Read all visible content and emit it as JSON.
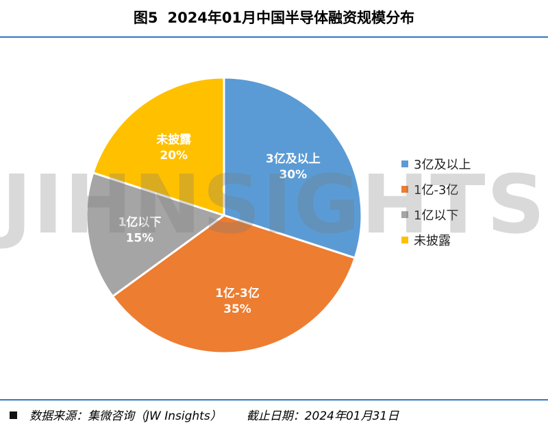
{
  "title": {
    "figure": "图5",
    "text": "2024年01月中国半导体融资规模分布"
  },
  "watermark": "JIHNSIGHTS",
  "footer": {
    "source": "数据来源：集微咨询（JW Insights）",
    "date": "截止日期：2024年01月31日"
  },
  "chart_data": {
    "type": "pie",
    "title": "2024年01月中国半导体融资规模分布",
    "legend_position": "right",
    "slices": [
      {
        "label": "3亿及以上",
        "value": 30,
        "display": "30%",
        "color": "#5b9bd5"
      },
      {
        "label": "1亿-3亿",
        "value": 35,
        "display": "35%",
        "color": "#ed7d31"
      },
      {
        "label": "1亿以下",
        "value": 15,
        "display": "15%",
        "color": "#a5a5a5"
      },
      {
        "label": "未披露",
        "value": 20,
        "display": "20%",
        "color": "#ffc000"
      }
    ]
  }
}
